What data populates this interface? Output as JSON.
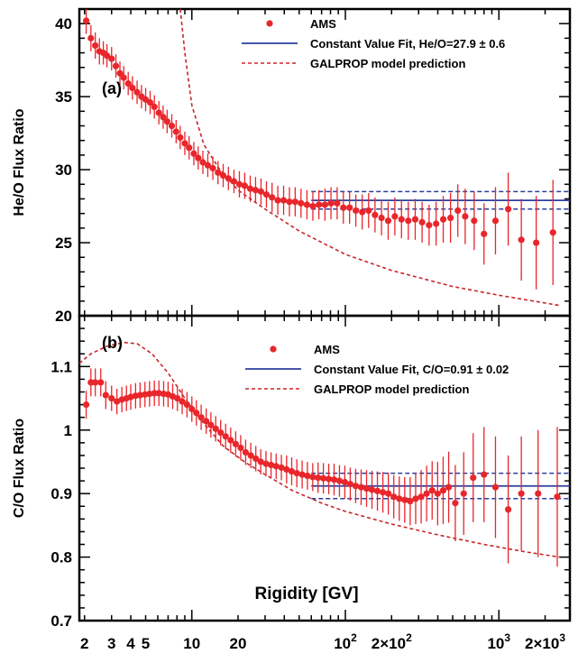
{
  "colors": {
    "ams": "#e8262b",
    "fit": "#2b3f9e",
    "model": "#c8262b",
    "axis": "#000000"
  },
  "xaxis": {
    "label": "Rigidity [GV]",
    "scale": "log",
    "range": [
      1.85,
      2900
    ],
    "ticks": [
      {
        "v": 2,
        "main": "2"
      },
      {
        "v": 3,
        "main": "3"
      },
      {
        "v": 4,
        "main": "4"
      },
      {
        "v": 5,
        "main": "5"
      },
      {
        "v": 10,
        "main": "10"
      },
      {
        "v": 20,
        "main": "20"
      },
      {
        "v": 100,
        "main": "10",
        "sup": "2"
      },
      {
        "v": 200,
        "main": "2×10",
        "sup": "2"
      },
      {
        "v": 1000,
        "main": "10",
        "sup": "3"
      },
      {
        "v": 2000,
        "main": "2×10",
        "sup": "3"
      }
    ]
  },
  "chart_data": [
    {
      "type": "scatter",
      "panel_label": "(a)",
      "ylabel": "He/O Flux Ratio",
      "ylim": [
        20,
        41
      ],
      "yticks": [
        20,
        25,
        30,
        35,
        40
      ],
      "legend": {
        "position": "top-right",
        "entries": [
          {
            "kind": "ams",
            "label": "AMS"
          },
          {
            "kind": "fit",
            "label": "Constant Value Fit, He/O=27.9 ± 0.6"
          },
          {
            "kind": "model",
            "label": "GALPROP model prediction"
          }
        ]
      },
      "fit": {
        "value": 27.9,
        "err": 0.6,
        "xmin": 60,
        "xmax": 2900
      },
      "model_curve": [
        [
          8.4,
          41
        ],
        [
          9,
          38
        ],
        [
          10,
          34.4
        ],
        [
          12,
          31.7
        ],
        [
          15,
          30.1
        ],
        [
          20,
          28.6
        ],
        [
          30,
          27.3
        ],
        [
          50,
          25.8
        ],
        [
          100,
          24.2
        ],
        [
          200,
          23.1
        ],
        [
          500,
          22.0
        ],
        [
          1000,
          21.4
        ],
        [
          2500,
          20.7
        ]
      ],
      "series": [
        {
          "name": "AMS",
          "points": [
            [
              2.05,
              40.2,
              0.9
            ],
            [
              2.2,
              39.0,
              0.9
            ],
            [
              2.35,
              38.5,
              0.9
            ],
            [
              2.5,
              38.1,
              0.9
            ],
            [
              2.65,
              38.0,
              0.8
            ],
            [
              2.8,
              37.8,
              0.8
            ],
            [
              3.0,
              37.6,
              0.8
            ],
            [
              3.2,
              37.1,
              0.8
            ],
            [
              3.4,
              36.6,
              0.8
            ],
            [
              3.6,
              36.3,
              0.8
            ],
            [
              3.85,
              35.9,
              0.8
            ],
            [
              4.1,
              35.6,
              0.8
            ],
            [
              4.4,
              35.3,
              0.8
            ],
            [
              4.7,
              35.0,
              0.8
            ],
            [
              5.0,
              34.8,
              0.8
            ],
            [
              5.35,
              34.6,
              0.8
            ],
            [
              5.7,
              34.3,
              0.8
            ],
            [
              6.1,
              33.9,
              0.8
            ],
            [
              6.5,
              33.6,
              0.8
            ],
            [
              6.9,
              33.3,
              0.8
            ],
            [
              7.4,
              33.0,
              0.8
            ],
            [
              7.9,
              32.6,
              0.8
            ],
            [
              8.4,
              32.2,
              0.8
            ],
            [
              9.0,
              31.8,
              0.8
            ],
            [
              9.6,
              31.5,
              0.8
            ],
            [
              10.3,
              31.1,
              0.8
            ],
            [
              11.0,
              30.8,
              0.8
            ],
            [
              11.8,
              30.5,
              0.8
            ],
            [
              12.7,
              30.3,
              0.8
            ],
            [
              13.7,
              30.1,
              0.8
            ],
            [
              14.8,
              29.8,
              0.8
            ],
            [
              16.0,
              29.6,
              0.8
            ],
            [
              17.3,
              29.4,
              0.8
            ],
            [
              18.8,
              29.2,
              0.8
            ],
            [
              20.4,
              29.0,
              0.9
            ],
            [
              22.1,
              28.9,
              0.9
            ],
            [
              24.0,
              28.7,
              0.9
            ],
            [
              26.0,
              28.6,
              0.9
            ],
            [
              28.2,
              28.5,
              0.9
            ],
            [
              30.6,
              28.3,
              0.9
            ],
            [
              33.3,
              28.1,
              1.0
            ],
            [
              36.3,
              27.9,
              1.0
            ],
            [
              39.6,
              27.9,
              1.0
            ],
            [
              43.2,
              27.8,
              1.0
            ],
            [
              47.1,
              27.8,
              1.0
            ],
            [
              51.4,
              27.7,
              1.0
            ],
            [
              56.2,
              27.6,
              1.0
            ],
            [
              61.4,
              27.5,
              1.0
            ],
            [
              67.2,
              27.6,
              1.0
            ],
            [
              73.6,
              27.6,
              1.1
            ],
            [
              80.6,
              27.7,
              1.1
            ],
            [
              88.4,
              27.7,
              1.1
            ],
            [
              97.0,
              27.4,
              1.1
            ],
            [
              106.5,
              27.4,
              1.1
            ],
            [
              117,
              27.2,
              1.1
            ],
            [
              128.7,
              27.1,
              1.2
            ],
            [
              141.7,
              27.2,
              1.2
            ],
            [
              156,
              26.9,
              1.2
            ],
            [
              172,
              26.7,
              1.2
            ],
            [
              190,
              26.5,
              1.3
            ],
            [
              210,
              26.8,
              1.3
            ],
            [
              232,
              26.6,
              1.3
            ],
            [
              257,
              26.5,
              1.3
            ],
            [
              285,
              26.6,
              1.4
            ],
            [
              316,
              26.4,
              1.4
            ],
            [
              351,
              26.2,
              1.4
            ],
            [
              390,
              26.3,
              1.5
            ],
            [
              434,
              26.6,
              1.6
            ],
            [
              484,
              26.7,
              1.7
            ],
            [
              540,
              27.2,
              1.8
            ],
            [
              603,
              26.8,
              1.9
            ],
            [
              690,
              26.5,
              2.0
            ],
            [
              800,
              25.6,
              2.1
            ],
            [
              950,
              26.5,
              2.3
            ],
            [
              1150,
              27.3,
              2.5
            ],
            [
              1400,
              25.2,
              2.8
            ],
            [
              1750,
              25.0,
              3.2
            ],
            [
              2250,
              25.7,
              3.6
            ]
          ]
        }
      ]
    },
    {
      "type": "scatter",
      "panel_label": "(b)",
      "ylabel": "C/O Flux Ratio",
      "ylim": [
        0.7,
        1.18
      ],
      "yticks": [
        0.7,
        0.8,
        0.9,
        1.0,
        1.1
      ],
      "ytick_labels": [
        "0.7",
        "0.8",
        "0.9",
        "1",
        "1.1"
      ],
      "legend": {
        "position": "top-right",
        "entries": [
          {
            "kind": "ams",
            "label": "AMS"
          },
          {
            "kind": "fit",
            "label": "Constant Value Fit, C/O=0.91 ± 0.02"
          },
          {
            "kind": "model",
            "label": "GALPROP model prediction"
          }
        ]
      },
      "fit": {
        "value": 0.912,
        "err": 0.02,
        "xmin": 60,
        "xmax": 2900
      },
      "model_curve": [
        [
          1.85,
          1.105
        ],
        [
          2.2,
          1.12
        ],
        [
          2.8,
          1.132
        ],
        [
          3.6,
          1.138
        ],
        [
          4.4,
          1.136
        ],
        [
          5.5,
          1.12
        ],
        [
          7,
          1.09
        ],
        [
          9,
          1.05
        ],
        [
          12,
          1.01
        ],
        [
          16,
          0.975
        ],
        [
          22,
          0.95
        ],
        [
          30,
          0.93
        ],
        [
          45,
          0.905
        ],
        [
          70,
          0.885
        ],
        [
          100,
          0.872
        ],
        [
          200,
          0.852
        ],
        [
          400,
          0.835
        ],
        [
          800,
          0.82
        ],
        [
          1500,
          0.808
        ],
        [
          2500,
          0.8
        ]
      ],
      "series": [
        {
          "name": "AMS",
          "points": [
            [
              2.05,
              1.04,
              0.022
            ],
            [
              2.2,
              1.075,
              0.022
            ],
            [
              2.35,
              1.075,
              0.022
            ],
            [
              2.55,
              1.075,
              0.022
            ],
            [
              2.75,
              1.055,
              0.022
            ],
            [
              3.0,
              1.05,
              0.02
            ],
            [
              3.25,
              1.045,
              0.02
            ],
            [
              3.5,
              1.048,
              0.02
            ],
            [
              3.75,
              1.05,
              0.02
            ],
            [
              4.0,
              1.052,
              0.02
            ],
            [
              4.3,
              1.054,
              0.02
            ],
            [
              4.6,
              1.055,
              0.02
            ],
            [
              4.95,
              1.056,
              0.02
            ],
            [
              5.3,
              1.057,
              0.02
            ],
            [
              5.7,
              1.058,
              0.02
            ],
            [
              6.1,
              1.058,
              0.02
            ],
            [
              6.55,
              1.057,
              0.02
            ],
            [
              7.0,
              1.056,
              0.02
            ],
            [
              7.5,
              1.053,
              0.02
            ],
            [
              8.05,
              1.05,
              0.02
            ],
            [
              8.65,
              1.045,
              0.02
            ],
            [
              9.3,
              1.04,
              0.02
            ],
            [
              10.0,
              1.033,
              0.02
            ],
            [
              10.7,
              1.027,
              0.02
            ],
            [
              11.5,
              1.02,
              0.02
            ],
            [
              12.4,
              1.014,
              0.02
            ],
            [
              13.3,
              1.008,
              0.02
            ],
            [
              14.3,
              1.002,
              0.02
            ],
            [
              15.4,
              0.996,
              0.02
            ],
            [
              16.6,
              0.99,
              0.02
            ],
            [
              17.9,
              0.984,
              0.02
            ],
            [
              19.3,
              0.978,
              0.02
            ],
            [
              20.8,
              0.972,
              0.02
            ],
            [
              22.4,
              0.965,
              0.02
            ],
            [
              24.2,
              0.96,
              0.02
            ],
            [
              26.1,
              0.955,
              0.02
            ],
            [
              28.1,
              0.95,
              0.02
            ],
            [
              30.4,
              0.947,
              0.02
            ],
            [
              32.8,
              0.945,
              0.02
            ],
            [
              35.4,
              0.943,
              0.02
            ],
            [
              38.3,
              0.941,
              0.02
            ],
            [
              41.4,
              0.938,
              0.022
            ],
            [
              44.7,
              0.935,
              0.022
            ],
            [
              48.3,
              0.932,
              0.022
            ],
            [
              52.3,
              0.93,
              0.022
            ],
            [
              56.6,
              0.928,
              0.022
            ],
            [
              61.3,
              0.926,
              0.022
            ],
            [
              66.4,
              0.925,
              0.024
            ],
            [
              71.9,
              0.924,
              0.024
            ],
            [
              77.9,
              0.923,
              0.024
            ],
            [
              84.4,
              0.922,
              0.025
            ],
            [
              91.5,
              0.92,
              0.025
            ],
            [
              99.2,
              0.918,
              0.026
            ],
            [
              107.6,
              0.915,
              0.026
            ],
            [
              116.7,
              0.912,
              0.027
            ],
            [
              126.6,
              0.91,
              0.028
            ],
            [
              137.4,
              0.908,
              0.029
            ],
            [
              149,
              0.906,
              0.03
            ],
            [
              161.7,
              0.904,
              0.031
            ],
            [
              175.5,
              0.902,
              0.032
            ],
            [
              190.4,
              0.9,
              0.033
            ],
            [
              206.7,
              0.895,
              0.034
            ],
            [
              224.4,
              0.892,
              0.035
            ],
            [
              243.5,
              0.89,
              0.036
            ],
            [
              264.3,
              0.888,
              0.038
            ],
            [
              287,
              0.892,
              0.04
            ],
            [
              311.6,
              0.895,
              0.042
            ],
            [
              338.3,
              0.9,
              0.044
            ],
            [
              367.4,
              0.905,
              0.046
            ],
            [
              399,
              0.9,
              0.05
            ],
            [
              433.4,
              0.905,
              0.053
            ],
            [
              470.8,
              0.91,
              0.056
            ],
            [
              520,
              0.885,
              0.06
            ],
            [
              590,
              0.9,
              0.065
            ],
            [
              680,
              0.925,
              0.07
            ],
            [
              800,
              0.93,
              0.075
            ],
            [
              950,
              0.91,
              0.08
            ],
            [
              1150,
              0.875,
              0.085
            ],
            [
              1400,
              0.9,
              0.09
            ],
            [
              1800,
              0.9,
              0.1
            ],
            [
              2400,
              0.895,
              0.11
            ]
          ]
        }
      ]
    }
  ]
}
